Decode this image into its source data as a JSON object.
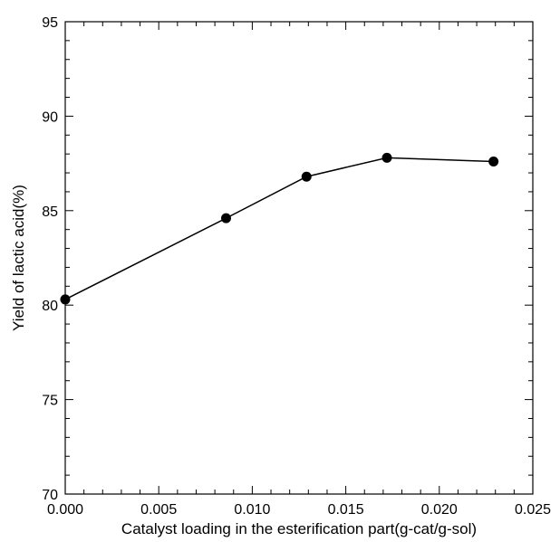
{
  "chart_data": {
    "type": "line",
    "title": "",
    "xlabel": "Catalyst loading in the esterification part(g-cat/g-sol)",
    "ylabel": "Yield of lactic acid(%)",
    "xlim": [
      0.0,
      0.025
    ],
    "ylim": [
      70,
      95
    ],
    "x_ticks": [
      "0.000",
      "0.005",
      "0.010",
      "0.015",
      "0.020",
      "0.025"
    ],
    "y_ticks": [
      "70",
      "75",
      "80",
      "85",
      "90",
      "95"
    ],
    "grid": false,
    "legend": "none",
    "series": [
      {
        "x": [
          0.0,
          0.0086,
          0.0129,
          0.0172,
          0.0229
        ],
        "y": [
          80.3,
          84.6,
          86.8,
          87.8,
          87.6
        ]
      }
    ]
  }
}
